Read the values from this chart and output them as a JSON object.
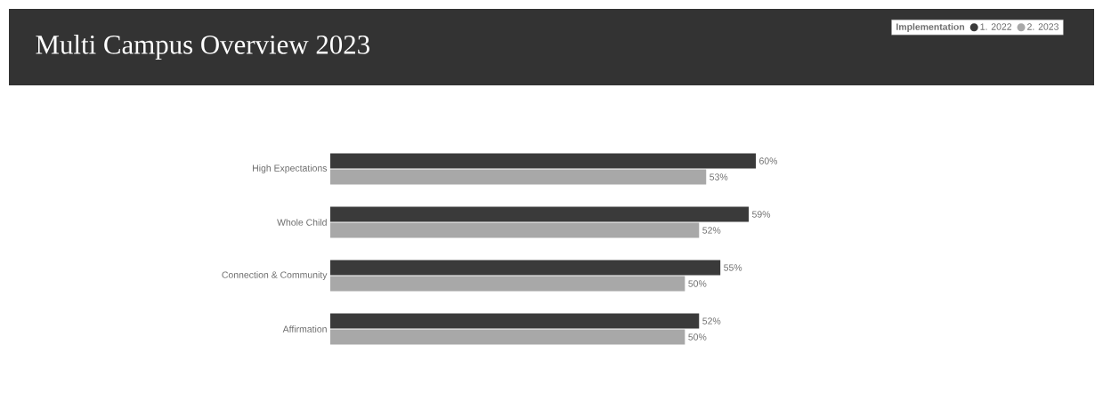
{
  "chart_data": {
    "type": "bar",
    "orientation": "horizontal",
    "title": "Multi Campus Overview 2023",
    "legend_title": "Implementation",
    "legend": "top right",
    "categories": [
      "High Expectations",
      "Whole Child",
      "Connection & Community",
      "Affirmation"
    ],
    "series": [
      {
        "name": "1. 2022",
        "color": "#3a3a3a",
        "values": [
          60,
          59,
          55,
          52
        ],
        "value_labels": [
          "60%",
          "59%",
          "55%",
          "52%"
        ]
      },
      {
        "name": "2. 2023",
        "color": "#a8a8a8",
        "values": [
          53,
          52,
          50,
          50
        ],
        "value_labels": [
          "53%",
          "52%",
          "50%",
          "50%"
        ]
      }
    ]
  }
}
